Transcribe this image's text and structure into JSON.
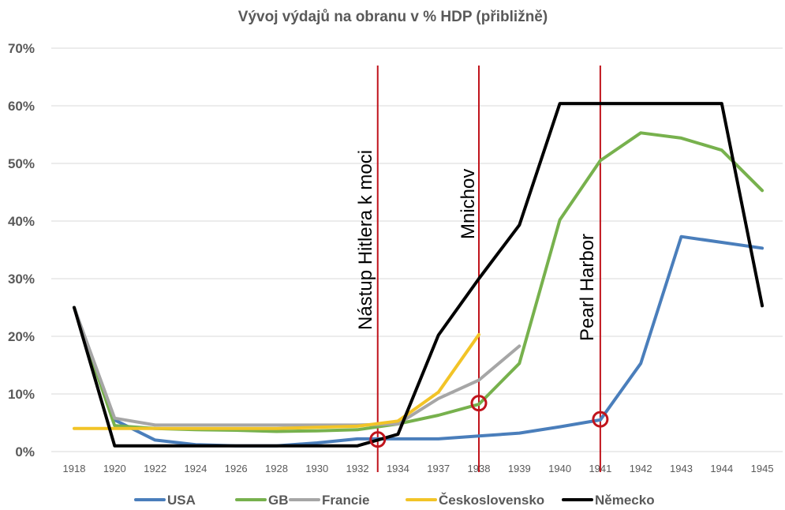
{
  "chart_data": {
    "type": "line",
    "title": "Vývoj výdajů na obranu v % HDP (přibližně)",
    "xlabel": "",
    "ylabel": "",
    "categories": [
      "1918",
      "1920",
      "1922",
      "1924",
      "1926",
      "1928",
      "1930",
      "1932",
      "1934",
      "1937",
      "1938",
      "1939",
      "1940",
      "1941",
      "1942",
      "1943",
      "1944",
      "1945"
    ],
    "ylim": [
      0,
      70
    ],
    "yticks": [
      0,
      10,
      20,
      30,
      40,
      50,
      60,
      70
    ],
    "ytick_labels": [
      "0%",
      "10%",
      "20%",
      "30%",
      "40%",
      "50%",
      "60%",
      "70%"
    ],
    "grid": true,
    "legend_position": "bottom",
    "series": [
      {
        "name": "USA",
        "color": "#4a7ebb",
        "values": [
          25,
          5.5,
          2,
          1.2,
          1,
          1,
          1.5,
          2.2,
          2.2,
          2.2,
          2.7,
          3.2,
          4.3,
          5.5,
          15.3,
          37.3,
          36.3,
          35.3
        ]
      },
      {
        "name": "GB",
        "color": "#77b14d",
        "values": [
          25,
          4.5,
          4,
          3.8,
          3.7,
          3.5,
          3.6,
          3.8,
          4.8,
          6.3,
          8.2,
          15.3,
          40.2,
          50.5,
          55.3,
          54.4,
          52.3,
          45.3
        ]
      },
      {
        "name": "Francie",
        "color": "#a6a6a6",
        "values": [
          25,
          5.8,
          4.6,
          4.6,
          4.6,
          4.6,
          4.6,
          4.6,
          4.8,
          9.2,
          12.4,
          18.3,
          null,
          null,
          null,
          null,
          null,
          null
        ]
      },
      {
        "name": "Československo",
        "color": "#f2c427",
        "values": [
          4,
          4,
          4,
          4,
          4,
          4,
          4.2,
          4.4,
          5.3,
          10.3,
          20.3,
          null,
          null,
          null,
          null,
          null,
          null,
          null
        ]
      },
      {
        "name": "Německo",
        "color": "#000000",
        "values": [
          25,
          1,
          1,
          1,
          1,
          1,
          1,
          1,
          3,
          20.2,
          30,
          39.3,
          60.4,
          60.4,
          60.4,
          60.4,
          60.4,
          25.3
        ]
      }
    ],
    "annotations": [
      {
        "text": "Nástup Hitlera k moci",
        "x": 1933,
        "color": "#c0141c"
      },
      {
        "text": "Mnichov",
        "x": 1938,
        "color": "#c0141c"
      },
      {
        "text": "Pearl Harbor",
        "x": 1941,
        "color": "#c0141c"
      }
    ],
    "markers": [
      {
        "x": 1933,
        "y": 2.1,
        "color": "#c0141c"
      },
      {
        "x": 1938,
        "y": 8.4,
        "color": "#c0141c"
      },
      {
        "x": 1941,
        "y": 5.6,
        "color": "#c0141c"
      }
    ]
  }
}
